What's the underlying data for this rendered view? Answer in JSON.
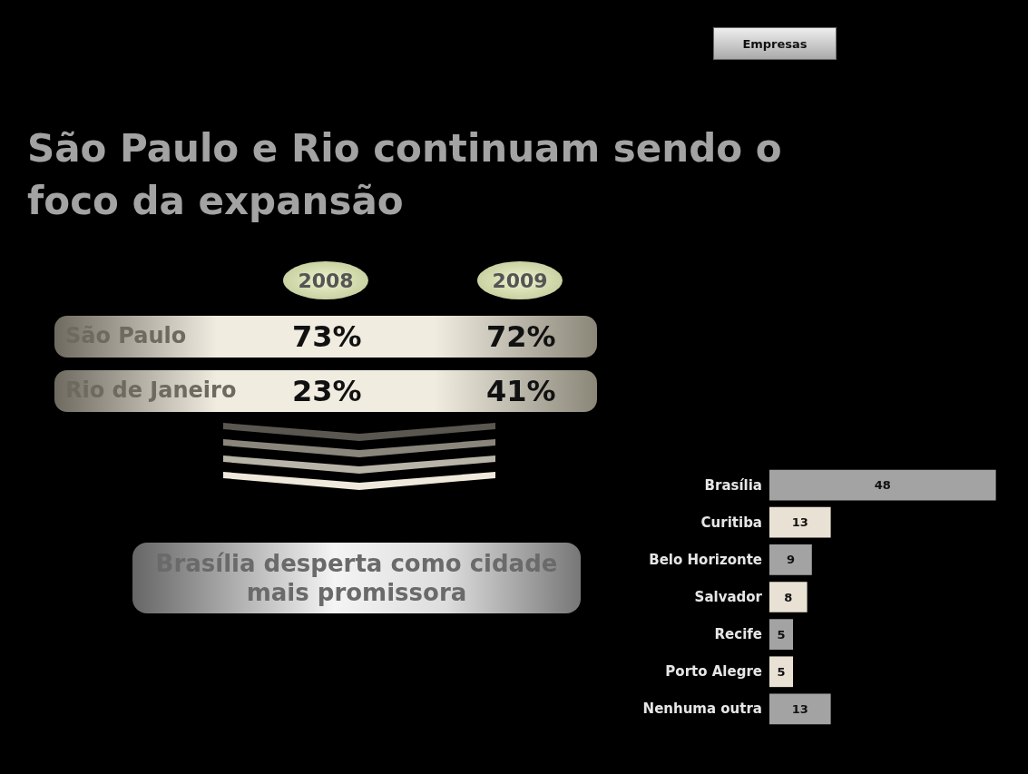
{
  "chart_data": [
    {
      "type": "other",
      "title": "São Paulo e Rio continuam sendo o foco da expansão",
      "categories": [
        "São Paulo",
        "Rio de Janeiro"
      ],
      "series": [
        {
          "name": "2008",
          "values": [
            73,
            23
          ],
          "value_labels": [
            "73%",
            "23%"
          ]
        },
        {
          "name": "2009",
          "values": [
            72,
            41
          ],
          "value_labels": [
            "72%",
            "41%"
          ]
        }
      ],
      "annotations": [
        "Empresas",
        "Brasília desperta como cidade mais promissora"
      ]
    },
    {
      "type": "bar",
      "orientation": "horizontal",
      "categories": [
        "Brasília",
        "Curitiba",
        "Belo Horizonte",
        "Salvador",
        "Recife",
        "Porto Alegre",
        "Nenhuma outra"
      ],
      "values": [
        48,
        13,
        9,
        8,
        5,
        5,
        13
      ],
      "colors": [
        "#a3a3a3",
        "#e9e1d3",
        "#a3a3a3",
        "#e9e1d3",
        "#a3a3a3",
        "#e9e1d3",
        "#a3a3a3"
      ],
      "data_labels": true
    }
  ]
}
